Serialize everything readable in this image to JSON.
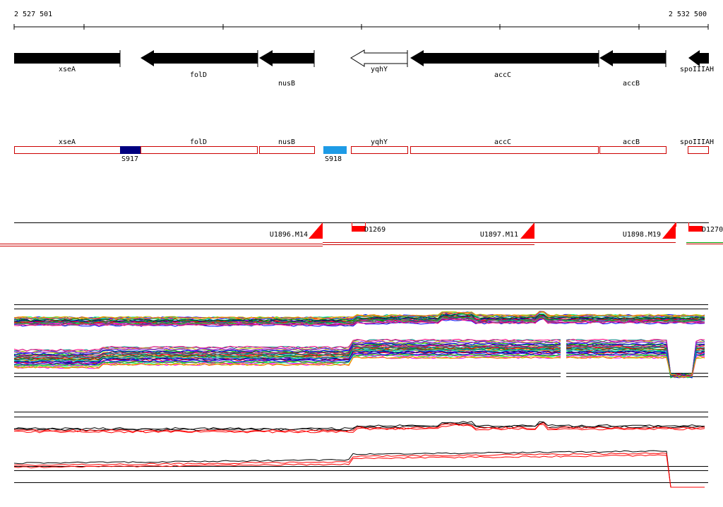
{
  "coords": {
    "start": "2 527 501",
    "end": "2 532 500"
  },
  "genes": [
    {
      "name": "xseA",
      "strand": "-",
      "filled": true
    },
    {
      "name": "folD",
      "strand": "-",
      "filled": true
    },
    {
      "name": "nusB",
      "strand": "-",
      "filled": true
    },
    {
      "name": "yqhY",
      "strand": "-",
      "filled": false
    },
    {
      "name": "accC",
      "strand": "-",
      "filled": true
    },
    {
      "name": "accB",
      "strand": "-",
      "filled": true
    },
    {
      "name": "spoIIIAH",
      "strand": "-",
      "filled": true
    }
  ],
  "annotations": {
    "gene_labels": [
      "xseA",
      "folD",
      "nusB",
      "yqhY",
      "accC",
      "accB",
      "spoIIIAH"
    ],
    "segments": [
      {
        "label": "S917",
        "color": "#000080"
      },
      {
        "label": "S918",
        "color": "#1e9be6"
      }
    ]
  },
  "transcription": {
    "upshifts": [
      "U1896.M14",
      "U1897.M11",
      "U1898.M19"
    ],
    "downshifts": [
      "D1269",
      "D1270"
    ],
    "color": "#ff0000"
  },
  "colors": {
    "gene_fill": "#000000",
    "feature_outline": "#cc0000",
    "track_line": "#000000"
  }
}
